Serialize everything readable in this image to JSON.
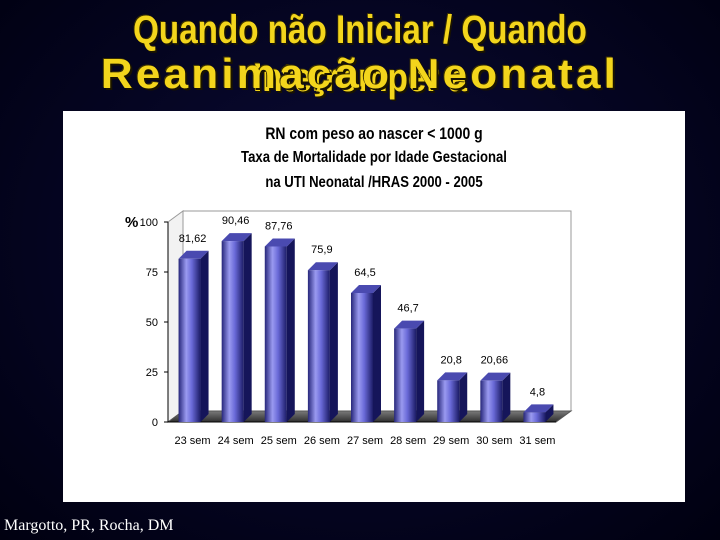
{
  "slide": {
    "title_line1": "Quando não Iniciar / Quando Interromper a",
    "title_line2": "Reanimação Neonatal",
    "credit": "Margotto, PR, Rocha, DM",
    "title_color": "#f3d51c"
  },
  "chart_data": {
    "type": "bar",
    "title": "RN com peso ao nascer < 1000 g",
    "subtitle": "Taxa de Mortalidade por Idade Gestacional",
    "subtitle2": "na UTI Neonatal /HRAS 2000 - 2005",
    "ylabel": "%",
    "xlabel": "",
    "categories": [
      "23 sem",
      "24 sem",
      "25 sem",
      "26 sem",
      "27 sem",
      "28 sem",
      "29 sem",
      "30 sem",
      "31 sem"
    ],
    "values": [
      81.62,
      90.46,
      87.76,
      75.9,
      64.5,
      46.7,
      20.8,
      20.66,
      4.8
    ],
    "value_labels": [
      "81,62",
      "90,46",
      "87,76",
      "75,9",
      "64,5",
      "46,7",
      "20,8",
      "20,66",
      "4,8"
    ],
    "yticks": [
      "0",
      "25",
      "50",
      "75",
      "100"
    ],
    "ylim": [
      0,
      100
    ],
    "grid": false,
    "bar_color": "#5555c8",
    "style": "3d"
  }
}
